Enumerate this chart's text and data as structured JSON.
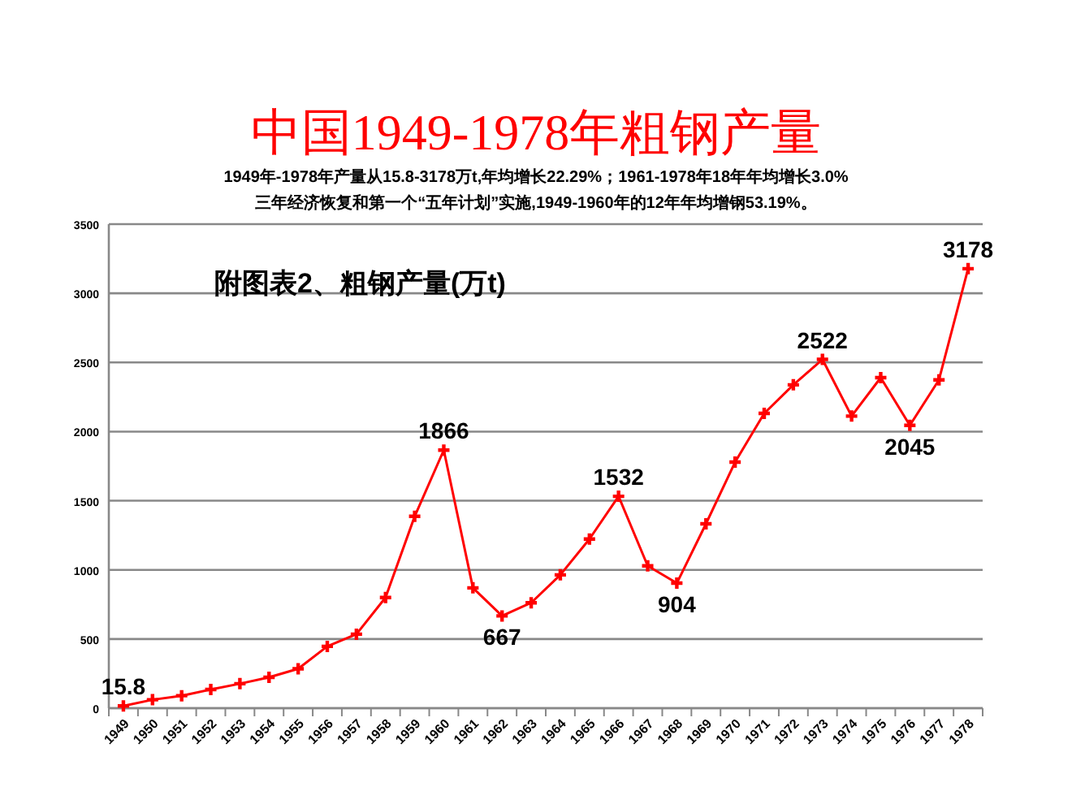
{
  "chart_data": {
    "type": "line",
    "title": "中国1949-1978年粗钢产量",
    "subtitle": "1949年-1978年产量从15.8-3178万t,年均增长22.29%；1961-1978年18年年均增长3.0%\n三年经济恢复和第一个“五年计划”实施,1949-1960年的12年年均增钢53.19%。",
    "annotations": [
      "附图表2、粗钢产量(万t)"
    ],
    "categories": [
      "1949",
      "1950",
      "1951",
      "1952",
      "1953",
      "1954",
      "1955",
      "1956",
      "1957",
      "1958",
      "1959",
      "1960",
      "1961",
      "1962",
      "1963",
      "1964",
      "1965",
      "1966",
      "1967",
      "1968",
      "1969",
      "1970",
      "1971",
      "1972",
      "1973",
      "1974",
      "1975",
      "1976",
      "1977",
      "1978"
    ],
    "series": [
      {
        "color": "#ff0000",
        "values": [
          15.8,
          61,
          90,
          135,
          177,
          223,
          285,
          447,
          535,
          800,
          1387,
          1866,
          870,
          667,
          762,
          964,
          1223,
          1532,
          1029,
          904,
          1333,
          1779,
          2132,
          2338,
          2522,
          2112,
          2390,
          2045,
          2374,
          3178
        ],
        "value_labels": [
          "15.8",
          null,
          null,
          null,
          null,
          null,
          null,
          null,
          null,
          null,
          null,
          "1866",
          null,
          "667",
          null,
          null,
          null,
          "1532",
          null,
          "904",
          null,
          null,
          null,
          null,
          "2522",
          null,
          null,
          "2045",
          null,
          "3178"
        ]
      }
    ],
    "ylim": [
      0,
      3500
    ],
    "yticks": [
      0,
      500,
      1000,
      1500,
      2000,
      2500,
      3000,
      3500
    ],
    "grid": "y",
    "marker": "cross",
    "line_style": "solid"
  }
}
